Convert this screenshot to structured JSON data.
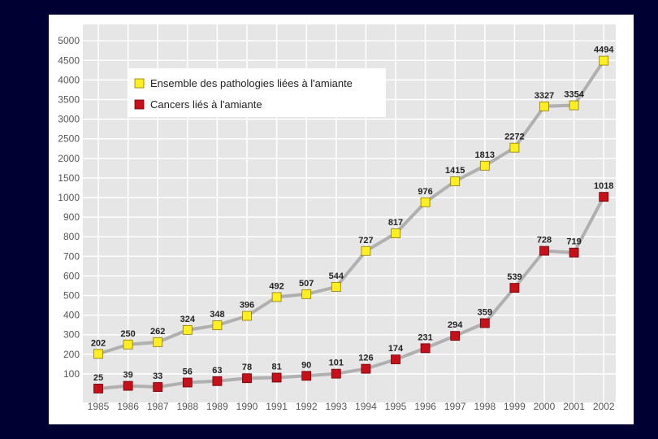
{
  "colors": {
    "background": "#000033",
    "plot_area": "#e6e6e6",
    "grid": "#ffffff",
    "line": "#b0b0b0",
    "series_all": "#ffee22",
    "series_cancer": "#c8101a"
  },
  "chart_data": {
    "type": "line",
    "x": [
      "1985",
      "1986",
      "1987",
      "1988",
      "1989",
      "1990",
      "1991",
      "1992",
      "1993",
      "1994",
      "1995",
      "1996",
      "1997",
      "1998",
      "1999",
      "2000",
      "2001",
      "2002"
    ],
    "y_ticks": [
      "100",
      "200",
      "300",
      "400",
      "500",
      "600",
      "700",
      "800",
      "900",
      "1000",
      "1500",
      "2000",
      "2500",
      "3000",
      "3500",
      "4000",
      "4500",
      "5000"
    ],
    "y_scale": "piecewise (step 100 up to 1000, step 500 above)",
    "ylim": [
      0,
      5000
    ],
    "grid": true,
    "legend_position": "top-left",
    "series": [
      {
        "name": "Ensemble des pathologies liées à l'amiante",
        "values": [
          202,
          250,
          262,
          324,
          348,
          396,
          492,
          507,
          544,
          727,
          817,
          976,
          1415,
          1813,
          2272,
          3327,
          3354,
          4494
        ]
      },
      {
        "name": "Cancers liés à l'amiante",
        "values": [
          25,
          39,
          33,
          56,
          63,
          78,
          81,
          90,
          101,
          126,
          174,
          231,
          294,
          359,
          539,
          728,
          719,
          1018
        ]
      }
    ]
  }
}
